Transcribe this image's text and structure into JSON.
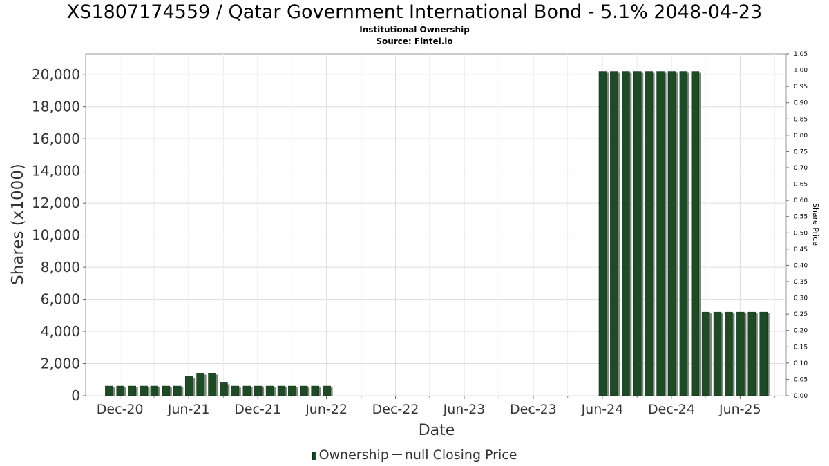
{
  "header": {
    "title": "XS1807174559 / Qatar Government International Bond - 5.1% 2048-04-23",
    "subtitle": "Institutional Ownership",
    "source": "Source: Fintel.io"
  },
  "legend": {
    "ownership_label": "Ownership",
    "price_label": "null Closing Price"
  },
  "colors": {
    "bar_fill": "#1e4a26",
    "bar_shadow": "#7a8a7a",
    "grid": "#dddddd",
    "axis_text": "#333333"
  },
  "chart_data": {
    "type": "bar",
    "xlabel": "Date",
    "ylabel": "Shares (x1000)",
    "y2label": "Share Price",
    "ylim": [
      0,
      21300
    ],
    "y2lim": [
      0,
      1.05
    ],
    "x_start": "2020-09",
    "x_end": "2025-10",
    "yticks": [
      "0",
      "2,000",
      "4,000",
      "6,000",
      "8,000",
      "10,000",
      "12,000",
      "14,000",
      "16,000",
      "18,000",
      "20,000"
    ],
    "y2ticks": [
      "0.00",
      "0.05",
      "0.10",
      "0.15",
      "0.20",
      "0.25",
      "0.30",
      "0.35",
      "0.40",
      "0.45",
      "0.50",
      "0.55",
      "0.60",
      "0.65",
      "0.70",
      "0.75",
      "0.80",
      "0.85",
      "0.90",
      "0.95",
      "1.00",
      "1.05"
    ],
    "xticks": [
      {
        "label": "Dec-20",
        "date": "2020-12-01"
      },
      {
        "label": "Jun-21",
        "date": "2021-06-01"
      },
      {
        "label": "Dec-21",
        "date": "2021-12-01"
      },
      {
        "label": "Jun-22",
        "date": "2022-06-01"
      },
      {
        "label": "Dec-22",
        "date": "2022-12-01"
      },
      {
        "label": "Jun-23",
        "date": "2023-06-01"
      },
      {
        "label": "Dec-23",
        "date": "2023-12-01"
      },
      {
        "label": "Jun-24",
        "date": "2024-06-01"
      },
      {
        "label": "Dec-24",
        "date": "2024-12-01"
      },
      {
        "label": "Jun-25",
        "date": "2025-06-01"
      }
    ],
    "grid": true,
    "legend_position": "bottom",
    "series": [
      {
        "name": "Ownership",
        "points": [
          {
            "date": "2020-11-02",
            "value": 600
          },
          {
            "date": "2020-12-02",
            "value": 600
          },
          {
            "date": "2021-01-02",
            "value": 600
          },
          {
            "date": "2021-02-02",
            "value": 600
          },
          {
            "date": "2021-03-02",
            "value": 600
          },
          {
            "date": "2021-04-02",
            "value": 600
          },
          {
            "date": "2021-05-02",
            "value": 600
          },
          {
            "date": "2021-06-02",
            "value": 1200
          },
          {
            "date": "2021-07-02",
            "value": 1400
          },
          {
            "date": "2021-08-02",
            "value": 1400
          },
          {
            "date": "2021-09-02",
            "value": 800
          },
          {
            "date": "2021-10-02",
            "value": 600
          },
          {
            "date": "2021-11-02",
            "value": 600
          },
          {
            "date": "2021-12-02",
            "value": 600
          },
          {
            "date": "2022-01-02",
            "value": 600
          },
          {
            "date": "2022-02-02",
            "value": 600
          },
          {
            "date": "2022-03-02",
            "value": 600
          },
          {
            "date": "2022-04-02",
            "value": 600
          },
          {
            "date": "2022-05-02",
            "value": 600
          },
          {
            "date": "2022-06-02",
            "value": 600
          },
          {
            "date": "2024-06-02",
            "value": 20200
          },
          {
            "date": "2024-07-02",
            "value": 20200
          },
          {
            "date": "2024-08-02",
            "value": 20200
          },
          {
            "date": "2024-09-02",
            "value": 20200
          },
          {
            "date": "2024-10-02",
            "value": 20200
          },
          {
            "date": "2024-11-02",
            "value": 20200
          },
          {
            "date": "2024-12-02",
            "value": 20200
          },
          {
            "date": "2025-01-02",
            "value": 20200
          },
          {
            "date": "2025-02-02",
            "value": 20200
          },
          {
            "date": "2025-03-02",
            "value": 5200
          },
          {
            "date": "2025-04-02",
            "value": 5200
          },
          {
            "date": "2025-05-02",
            "value": 5200
          },
          {
            "date": "2025-06-02",
            "value": 5200
          },
          {
            "date": "2025-07-02",
            "value": 5200
          },
          {
            "date": "2025-08-02",
            "value": 5200
          }
        ]
      }
    ]
  }
}
